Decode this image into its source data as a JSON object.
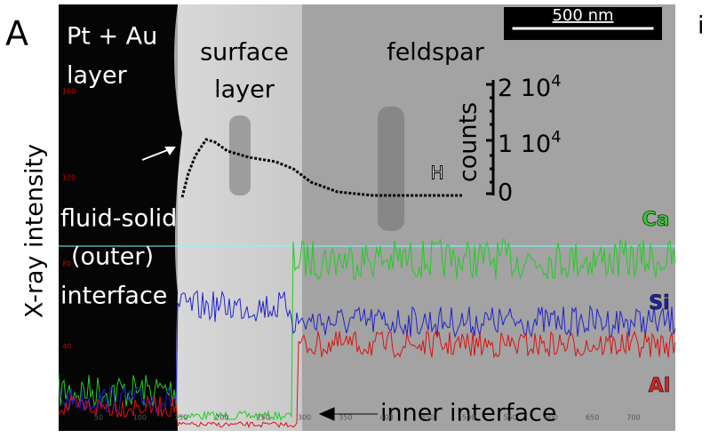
{
  "panel_label": "A",
  "side_label": "i",
  "labels": {
    "pt_au": [
      "Pt + Au",
      "layer"
    ],
    "surface": [
      "surface",
      "layer"
    ],
    "feldspar": "feldspar",
    "scale_bar": "500 nm",
    "y_axis": "X-ray intensity",
    "fluid_solid": [
      "fluid-solid",
      "(outer)",
      "interface"
    ],
    "inner": "inner interface",
    "h": "H"
  },
  "inset": {
    "axis": "counts",
    "ticks": [
      {
        "mantissa": "2 10",
        "exp": "4"
      },
      {
        "mantissa": "1 10",
        "exp": "4"
      },
      {
        "mantissa": "0"
      }
    ]
  },
  "elements": [
    "Ca",
    "Si",
    "Al"
  ],
  "left_ticks": [
    "160",
    "120",
    "80",
    "40"
  ],
  "bottom_ticks": [
    "50",
    "100",
    "150",
    "200",
    "250",
    "300",
    "350",
    "400",
    "450",
    "500",
    "550",
    "600",
    "650",
    "700"
  ]
}
